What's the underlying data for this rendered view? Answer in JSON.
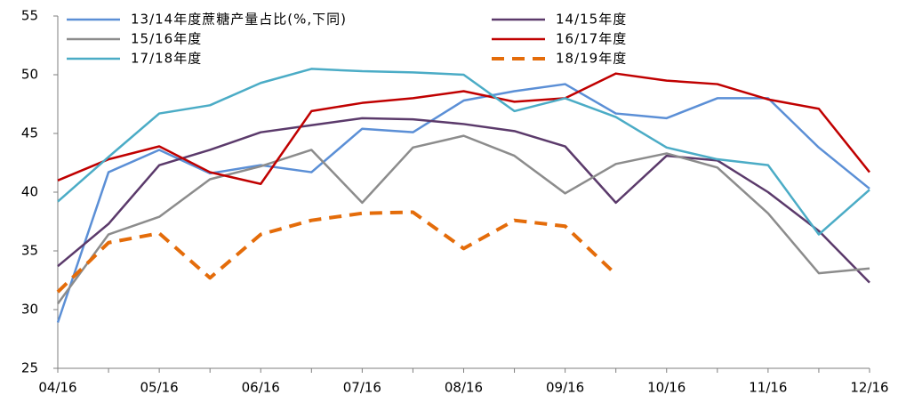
{
  "chart_data": {
    "type": "line",
    "categories": [
      "04/16",
      null,
      "05/16",
      null,
      "06/16",
      null,
      "07/16",
      null,
      "08/16",
      null,
      "09/16",
      null,
      "10/16",
      null,
      "11/16",
      null,
      "12/16"
    ],
    "ylim": [
      25,
      55
    ],
    "yticks": [
      25,
      30,
      35,
      40,
      45,
      50,
      55
    ],
    "grid": false,
    "legend": "top",
    "series": [
      {
        "name": "13/14年度蔗糖产量占比(%,下同)",
        "color": "#5b8fd6",
        "dash": false,
        "values": [
          28.9,
          41.7,
          43.6,
          41.6,
          42.3,
          41.7,
          45.4,
          45.1,
          47.8,
          48.6,
          49.2,
          46.7,
          46.3,
          48.0,
          48.0,
          43.8,
          40.3
        ]
      },
      {
        "name": "14/15年度",
        "color": "#5b3a6b",
        "dash": false,
        "values": [
          33.7,
          37.3,
          42.3,
          43.6,
          45.1,
          45.7,
          46.3,
          46.2,
          45.8,
          45.2,
          43.9,
          39.1,
          43.1,
          42.7,
          40.0,
          36.7,
          32.3
        ]
      },
      {
        "name": "15/16年度",
        "color": "#8c8c8c",
        "dash": false,
        "values": [
          30.5,
          36.4,
          37.9,
          41.1,
          42.2,
          43.6,
          39.1,
          43.8,
          44.8,
          43.1,
          39.9,
          42.4,
          43.3,
          42.1,
          38.2,
          33.1,
          33.5
        ]
      },
      {
        "name": "16/17年度",
        "color": "#c00000",
        "dash": false,
        "values": [
          41.0,
          42.8,
          43.9,
          41.7,
          40.7,
          46.9,
          47.6,
          48.0,
          48.6,
          47.7,
          48.0,
          50.1,
          49.5,
          49.2,
          47.9,
          47.1,
          41.7
        ]
      },
      {
        "name": "17/18年度",
        "color": "#4bacc6",
        "dash": false,
        "values": [
          39.2,
          43.0,
          46.7,
          47.4,
          49.3,
          50.5,
          50.3,
          50.2,
          50.0,
          46.9,
          48.0,
          46.4,
          43.8,
          42.8,
          42.3,
          36.4,
          40.2
        ]
      },
      {
        "name": "18/19年度",
        "color": "#e46c0a",
        "dash": true,
        "values": [
          31.5,
          35.7,
          36.5,
          32.7,
          36.4,
          37.6,
          38.2,
          38.3,
          35.2,
          37.6,
          37.1,
          33.0,
          null,
          null,
          null,
          null,
          null
        ]
      }
    ]
  }
}
